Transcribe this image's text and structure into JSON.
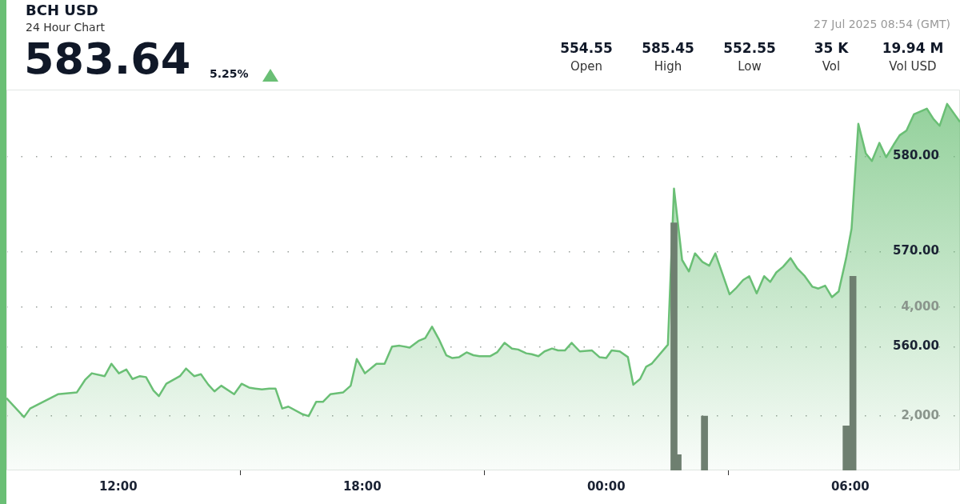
{
  "chart_data": {
    "type": "area",
    "title": "BCH USD",
    "subtitle": "24 Hour Chart",
    "annotations": [
      "583.64",
      "5.25%",
      "27 Jul 2025 08:54 (GMT)",
      "554.55",
      "Open",
      "585.45",
      "High",
      "552.55",
      "Low",
      "35 K",
      "Vol",
      "19.94 M",
      "Vol USD"
    ],
    "series": [
      {
        "color": "#6abf75",
        "x": [
          "2025-07-26T09:15",
          "2025-07-26T09:41",
          "2025-07-26T09:50",
          "2025-07-26T10:31",
          "2025-07-26T10:59",
          "2025-07-26T11:11",
          "2025-07-26T11:21",
          "2025-07-26T11:40",
          "2025-07-26T11:50",
          "2025-07-26T12:01",
          "2025-07-26T12:12",
          "2025-07-26T12:21",
          "2025-07-26T12:32",
          "2025-07-26T12:41",
          "2025-07-26T12:52",
          "2025-07-26T13:00",
          "2025-07-26T13:11",
          "2025-07-26T13:31",
          "2025-07-26T13:40",
          "2025-07-26T13:52",
          "2025-07-26T14:02",
          "2025-07-26T14:13",
          "2025-07-26T14:22",
          "2025-07-26T14:32",
          "2025-07-26T14:51",
          "2025-07-26T15:02",
          "2025-07-26T15:13",
          "2025-07-26T15:22",
          "2025-07-26T15:32",
          "2025-07-26T15:43",
          "2025-07-26T15:52",
          "2025-07-26T16:02",
          "2025-07-26T16:11",
          "2025-07-26T16:32",
          "2025-07-26T16:41",
          "2025-07-26T16:52",
          "2025-07-26T17:02",
          "2025-07-26T17:13",
          "2025-07-26T17:32",
          "2025-07-26T17:43",
          "2025-07-26T17:52",
          "2025-07-26T18:04",
          "2025-07-26T18:21",
          "2025-07-26T18:33",
          "2025-07-26T18:44",
          "2025-07-26T18:55",
          "2025-07-26T19:10",
          "2025-07-26T19:23",
          "2025-07-26T19:33",
          "2025-07-26T19:43",
          "2025-07-26T19:53",
          "2025-07-26T20:04",
          "2025-07-26T20:13",
          "2025-07-26T20:23",
          "2025-07-26T20:34",
          "2025-07-26T20:44",
          "2025-07-26T20:53",
          "2025-07-26T21:09",
          "2025-07-26T21:19",
          "2025-07-26T21:30",
          "2025-07-26T21:41",
          "2025-07-26T21:50",
          "2025-07-26T22:02",
          "2025-07-26T22:10",
          "2025-07-26T22:20",
          "2025-07-26T22:29",
          "2025-07-26T22:40",
          "2025-07-26T22:49",
          "2025-07-26T22:59",
          "2025-07-26T23:09",
          "2025-07-26T23:21",
          "2025-07-26T23:39",
          "2025-07-26T23:50",
          "2025-07-27T00:00",
          "2025-07-27T00:08",
          "2025-07-27T00:20",
          "2025-07-27T00:32",
          "2025-07-27T00:40",
          "2025-07-27T00:50",
          "2025-07-27T00:59",
          "2025-07-27T01:07",
          "2025-07-27T01:31",
          "2025-07-27T01:40",
          "2025-07-27T01:52",
          "2025-07-27T02:02",
          "2025-07-27T02:11",
          "2025-07-27T02:22",
          "2025-07-27T02:32",
          "2025-07-27T02:41",
          "2025-07-27T03:02",
          "2025-07-27T03:11",
          "2025-07-27T03:22",
          "2025-07-27T03:31",
          "2025-07-27T03:42",
          "2025-07-27T03:53",
          "2025-07-27T04:02",
          "2025-07-27T04:11",
          "2025-07-27T04:21",
          "2025-07-27T04:32",
          "2025-07-27T04:42",
          "2025-07-27T04:53",
          "2025-07-27T05:04",
          "2025-07-27T05:13",
          "2025-07-27T05:23",
          "2025-07-27T05:33",
          "2025-07-27T05:43",
          "2025-07-27T05:54",
          "2025-07-27T06:02",
          "2025-07-27T06:12",
          "2025-07-27T06:23",
          "2025-07-27T06:32",
          "2025-07-27T06:43",
          "2025-07-27T06:53",
          "2025-07-27T07:04",
          "2025-07-27T07:13",
          "2025-07-27T07:23",
          "2025-07-27T07:34",
          "2025-07-27T07:53",
          "2025-07-27T08:03",
          "2025-07-27T08:12",
          "2025-07-27T08:23",
          "2025-07-27T08:35",
          "2025-07-27T08:42"
        ],
        "values": [
          554.6,
          552.6,
          553.5,
          555.0,
          555.2,
          556.5,
          557.2,
          556.9,
          558.2,
          557.2,
          557.6,
          556.6,
          556.9,
          556.8,
          555.4,
          554.8,
          556.1,
          556.9,
          557.7,
          556.9,
          557.1,
          556.0,
          555.3,
          555.9,
          555.0,
          556.1,
          555.7,
          555.6,
          555.5,
          555.6,
          555.6,
          553.5,
          553.7,
          552.9,
          552.7,
          554.2,
          554.2,
          555.0,
          555.2,
          555.9,
          558.7,
          557.2,
          558.2,
          558.2,
          560.0,
          560.1,
          559.9,
          560.6,
          560.9,
          562.1,
          560.8,
          559.1,
          558.8,
          558.9,
          559.4,
          559.1,
          559.0,
          559.0,
          559.4,
          560.4,
          559.8,
          559.7,
          559.3,
          559.2,
          559.0,
          559.5,
          559.8,
          559.6,
          559.6,
          560.4,
          559.5,
          559.6,
          558.9,
          558.8,
          559.6,
          559.5,
          558.9,
          556.0,
          556.6,
          557.9,
          558.2,
          560.2,
          576.6,
          569.1,
          567.9,
          569.8,
          568.9,
          568.5,
          569.8,
          565.5,
          566.1,
          567.0,
          567.4,
          565.6,
          567.4,
          566.8,
          567.8,
          568.4,
          569.3,
          568.2,
          567.4,
          566.3,
          566.1,
          566.4,
          565.2,
          565.8,
          569.3,
          572.4,
          583.4,
          580.3,
          579.5,
          581.4,
          579.9,
          581.2,
          582.2,
          582.7,
          584.4,
          585.0,
          583.9,
          583.2,
          585.5,
          584.3,
          583.6
        ]
      },
      {
        "type": "bar",
        "axis": "y2",
        "color": "#6e7f70",
        "x": [
          "2025-07-27T01:40",
          "2025-07-27T01:46",
          "2025-07-27T02:25",
          "2025-07-27T05:54",
          "2025-07-27T06:04"
        ],
        "values": [
          5550,
          1290,
          2000,
          1820,
          4570
        ]
      }
    ],
    "xlim": [
      "2025-07-26T09:15",
      "2025-07-27T08:42"
    ],
    "xticks": [
      {
        "value": "2025-07-26T12:00",
        "label": "12:00"
      },
      {
        "value": "2025-07-26T18:00",
        "label": "18:00"
      },
      {
        "value": "2025-07-27T00:00",
        "label": "00:00"
      },
      {
        "value": "2025-07-27T06:00",
        "label": "06:00"
      }
    ],
    "ylim": [
      547,
      587
    ],
    "yticks": [
      {
        "value": 560,
        "label": "560.00"
      },
      {
        "value": 570,
        "label": "570.00"
      },
      {
        "value": 580,
        "label": "580.00"
      }
    ],
    "y2lim": [
      1000,
      8000
    ],
    "y2ticks": [
      {
        "value": 2000,
        "label": "2,000"
      },
      {
        "value": 4000,
        "label": "4,000"
      }
    ],
    "grid": "y",
    "legend": false,
    "marker": "none"
  }
}
